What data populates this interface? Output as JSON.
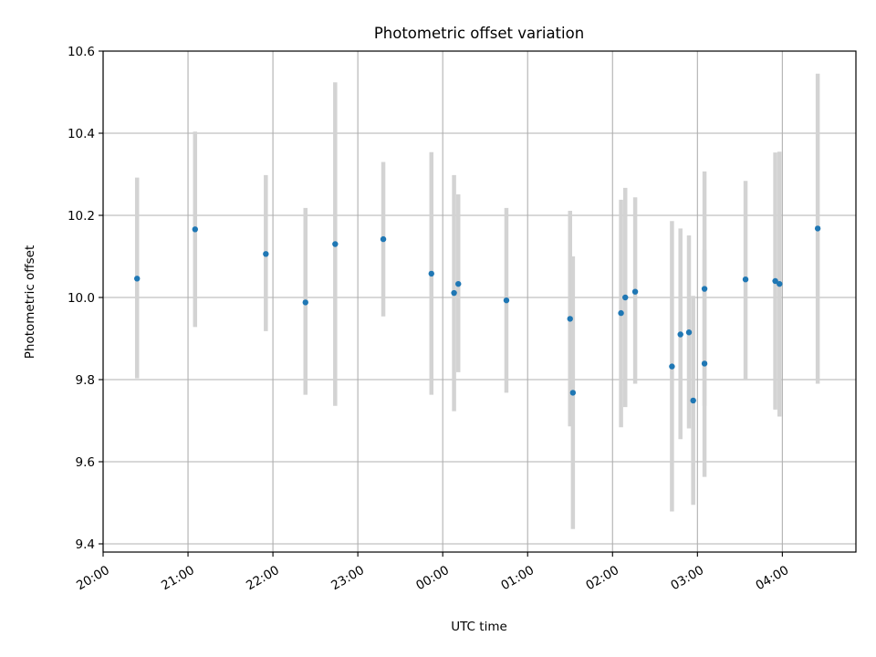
{
  "chart_data": {
    "type": "scatter",
    "title": "Photometric offset variation",
    "xlabel": "UTC time",
    "ylabel": "Photometric offset",
    "x_ticks": [
      "20:00",
      "21:00",
      "22:00",
      "23:00",
      "00:00",
      "01:00",
      "02:00",
      "03:00",
      "04:00"
    ],
    "y_ticks": [
      "9.4",
      "9.6",
      "9.8",
      "10.0",
      "10.2",
      "10.4",
      "10.6"
    ],
    "ylim": [
      9.38,
      10.6
    ],
    "xlim": [
      "20:00",
      "04:52"
    ],
    "grid": true,
    "colors": {
      "points": "#1f77b4",
      "errorbars": "#d3d3d3",
      "grid": "#b0b0b0"
    },
    "points": [
      {
        "x": "20:24",
        "y": 10.046,
        "ylow": 9.803,
        "yhigh": 10.292
      },
      {
        "x": "21:05",
        "y": 10.166,
        "ylow": 9.928,
        "yhigh": 10.404
      },
      {
        "x": "21:55",
        "y": 10.106,
        "ylow": 9.918,
        "yhigh": 10.298
      },
      {
        "x": "22:23",
        "y": 9.988,
        "ylow": 9.763,
        "yhigh": 10.218
      },
      {
        "x": "22:44",
        "y": 10.13,
        "ylow": 9.736,
        "yhigh": 10.524
      },
      {
        "x": "23:18",
        "y": 10.142,
        "ylow": 9.954,
        "yhigh": 10.33
      },
      {
        "x": "23:52",
        "y": 10.058,
        "ylow": 9.763,
        "yhigh": 10.354
      },
      {
        "x": "00:08",
        "y": 10.011,
        "ylow": 9.723,
        "yhigh": 10.298
      },
      {
        "x": "00:11",
        "y": 10.033,
        "ylow": 9.818,
        "yhigh": 10.251
      },
      {
        "x": "00:45",
        "y": 9.993,
        "ylow": 9.768,
        "yhigh": 10.218
      },
      {
        "x": "01:30",
        "y": 9.948,
        "ylow": 9.686,
        "yhigh": 10.211
      },
      {
        "x": "01:32",
        "y": 9.768,
        "ylow": 9.436,
        "yhigh": 10.1
      },
      {
        "x": "02:06",
        "y": 9.962,
        "ylow": 9.684,
        "yhigh": 10.238
      },
      {
        "x": "02:09",
        "y": 10.0,
        "ylow": 9.733,
        "yhigh": 10.267
      },
      {
        "x": "02:16",
        "y": 10.014,
        "ylow": 9.79,
        "yhigh": 10.244
      },
      {
        "x": "02:42",
        "y": 9.832,
        "ylow": 9.479,
        "yhigh": 10.186
      },
      {
        "x": "02:48",
        "y": 9.91,
        "ylow": 9.655,
        "yhigh": 10.168
      },
      {
        "x": "02:54",
        "y": 9.915,
        "ylow": 9.681,
        "yhigh": 10.151
      },
      {
        "x": "02:57",
        "y": 9.749,
        "ylow": 9.495,
        "yhigh": 10.004
      },
      {
        "x": "03:05",
        "y": 10.021,
        "ylow": 9.736,
        "yhigh": 10.307
      },
      {
        "x": "03:05",
        "y": 9.839,
        "ylow": 9.563,
        "yhigh": 10.116
      },
      {
        "x": "03:34",
        "y": 10.044,
        "ylow": 9.8,
        "yhigh": 10.284
      },
      {
        "x": "03:55",
        "y": 10.04,
        "ylow": 9.727,
        "yhigh": 10.353
      },
      {
        "x": "03:58",
        "y": 10.033,
        "ylow": 9.71,
        "yhigh": 10.355
      },
      {
        "x": "04:25",
        "y": 10.168,
        "ylow": 9.79,
        "yhigh": 10.545
      }
    ]
  }
}
